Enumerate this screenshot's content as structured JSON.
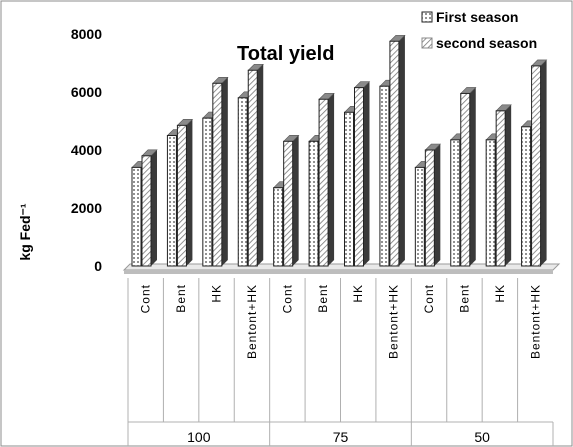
{
  "chart_data": {
    "type": "bar",
    "title": "Total yield",
    "ylabel": "kg Fed⁻¹",
    "ylim": [
      0,
      8000
    ],
    "yticks": [
      0,
      2000,
      4000,
      6000,
      8000
    ],
    "categories": [
      "Cont",
      "Bent",
      "HK",
      "Bentont+HK",
      "Cont",
      "Bent",
      "HK",
      "Bentont+HK",
      "Cont",
      "Bent",
      "HK",
      "Bentont+HK"
    ],
    "groups": [
      {
        "label": "100",
        "span": 4
      },
      {
        "label": "75",
        "span": 4
      },
      {
        "label": "50",
        "span": 4
      }
    ],
    "series": [
      {
        "name": "First season",
        "color": "#e6e6e6",
        "values": [
          3400,
          4500,
          5100,
          5800,
          2700,
          4300,
          5300,
          6200,
          3400,
          4350,
          4350,
          4800
        ]
      },
      {
        "name": "second season",
        "color": "#bdbdbd",
        "values": [
          3800,
          4850,
          6300,
          6750,
          4300,
          5750,
          6150,
          7750,
          4000,
          5950,
          5350,
          6900
        ]
      }
    ],
    "legend_position": "top-right",
    "grid": false
  }
}
